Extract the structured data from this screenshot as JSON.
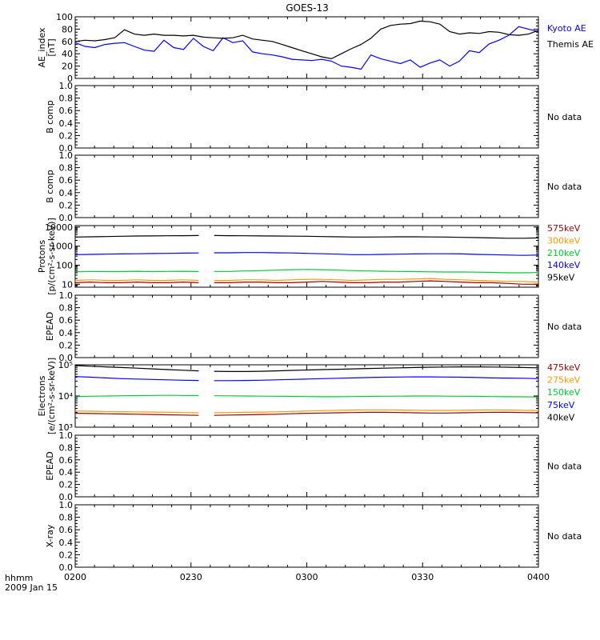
{
  "title": "GOES-13",
  "x_axis": {
    "ticks": [
      "0200",
      "0230",
      "0300",
      "0330",
      "0400"
    ],
    "corner_label_1": "hhmm",
    "corner_label_2": "2009 Jan 15"
  },
  "chart_data": [
    {
      "type": "line",
      "ylabel_lines": [
        "AE_index",
        "[nT]"
      ],
      "ylim": [
        0,
        100
      ],
      "yticks": [
        "0",
        "20",
        "40",
        "60",
        "80",
        "100"
      ],
      "series": [
        {
          "name": "Kyoto AE",
          "color": "#0000ff",
          "values": [
            58,
            52,
            50,
            55,
            57,
            58,
            52,
            46,
            44,
            62,
            50,
            47,
            65,
            52,
            45,
            66,
            58,
            61,
            43,
            40,
            38,
            35,
            31,
            30,
            29,
            31,
            28,
            20,
            18,
            15,
            38,
            32,
            28,
            24,
            30,
            18,
            25,
            30,
            20,
            28,
            45,
            42,
            56,
            62,
            70,
            84,
            80,
            76
          ]
        },
        {
          "name": "Themis AE",
          "color": "#000000",
          "values": [
            60,
            62,
            61,
            63,
            66,
            79,
            72,
            70,
            72,
            70,
            70,
            69,
            70,
            67,
            66,
            65,
            66,
            70,
            64,
            62,
            60,
            55,
            50,
            45,
            40,
            35,
            32,
            40,
            48,
            55,
            65,
            80,
            86,
            88,
            89,
            93,
            92,
            88,
            76,
            72,
            74,
            73,
            76,
            75,
            71,
            70,
            72,
            78
          ]
        }
      ],
      "legend": [
        "Kyoto AE",
        "Themis AE"
      ]
    },
    {
      "type": "line",
      "ylabel_lines": [
        "B comp"
      ],
      "ylim": [
        0,
        1.0
      ],
      "yticks": [
        "0.0",
        "0.2",
        "0.4",
        "0.6",
        "0.8",
        "1.0"
      ],
      "note": "No data",
      "series": []
    },
    {
      "type": "line",
      "ylabel_lines": [
        "B comp"
      ],
      "ylim": [
        0,
        1.0
      ],
      "yticks": [
        "0.0",
        "0.2",
        "0.4",
        "0.6",
        "0.8",
        "1.0"
      ],
      "note": "No data",
      "series": []
    },
    {
      "type": "line",
      "scale": "log",
      "ylabel_lines": [
        "Protons",
        "[p/(cm²-s-sr-keV)]"
      ],
      "ylim": [
        7,
        12000
      ],
      "yticks": [
        {
          "v": 10,
          "t": "10"
        },
        {
          "v": 100,
          "t": "100"
        },
        {
          "v": 1000,
          "t": "1000"
        },
        {
          "v": 10000,
          "t": "10000"
        }
      ],
      "gap": [
        0.27,
        0.28
      ],
      "series": [
        {
          "name": "575keV",
          "color": "#990000",
          "values": [
            12,
            13,
            12,
            12,
            13,
            12,
            12,
            13,
            12,
            12,
            12,
            13,
            13,
            12,
            12,
            13,
            14,
            13,
            12,
            12,
            13,
            13,
            14,
            15,
            14,
            13,
            12,
            12,
            11,
            10,
            10
          ]
        },
        {
          "name": "300keV",
          "color": "#ff9900",
          "values": [
            16,
            17,
            16,
            16,
            17,
            16,
            16,
            17,
            16,
            16,
            16,
            17,
            17,
            16,
            17,
            18,
            18,
            17,
            16,
            17,
            18,
            18,
            19,
            20,
            18,
            17,
            16,
            15,
            14,
            14,
            13
          ]
        },
        {
          "name": "210keV",
          "color": "#00cc33",
          "values": [
            45,
            47,
            46,
            46,
            48,
            46,
            47,
            48,
            46,
            47,
            47,
            50,
            52,
            55,
            58,
            60,
            58,
            55,
            52,
            50,
            48,
            47,
            46,
            45,
            44,
            44,
            43,
            42,
            40,
            40,
            41
          ]
        },
        {
          "name": "140keV",
          "color": "#0000ff",
          "values": [
            360,
            370,
            380,
            390,
            400,
            410,
            420,
            430,
            440,
            450,
            450,
            460,
            460,
            450,
            440,
            420,
            400,
            380,
            360,
            360,
            370,
            380,
            390,
            400,
            400,
            390,
            370,
            360,
            340,
            330,
            340
          ]
        },
        {
          "name": "95keV",
          "color": "#000000",
          "values": [
            3000,
            3100,
            3200,
            3300,
            3400,
            3450,
            3500,
            3550,
            3600,
            3600,
            3550,
            3500,
            3450,
            3400,
            3350,
            3300,
            3200,
            3100,
            3000,
            3000,
            3050,
            3100,
            3100,
            3050,
            3000,
            2900,
            2800,
            2700,
            2600,
            2600,
            2700
          ]
        }
      ],
      "legend": [
        "575keV",
        "300keV",
        "210keV",
        "140keV",
        "95keV"
      ]
    },
    {
      "type": "line",
      "ylabel_lines": [
        "EPEAD"
      ],
      "ylim": [
        0,
        1.0
      ],
      "yticks": [
        "0.0",
        "0.2",
        "0.4",
        "0.6",
        "0.8",
        "1.0"
      ],
      "note": "No data",
      "series": []
    },
    {
      "type": "line",
      "scale": "log",
      "ylabel_lines": [
        "Electrons",
        "[e/(cm²-s-sr-keV)]"
      ],
      "ylim": [
        1000,
        100000
      ],
      "yticks": [
        {
          "v": 1000,
          "t": "10³"
        },
        {
          "v": 10000,
          "t": "10⁴"
        },
        {
          "v": 100000,
          "t": "10⁵"
        }
      ],
      "gap": [
        0.27,
        0.28
      ],
      "series": [
        {
          "name": "475keV",
          "color": "#990000",
          "values": [
            2800,
            2750,
            2700,
            2650,
            2600,
            2550,
            2500,
            2450,
            2400,
            2400,
            2450,
            2500,
            2550,
            2600,
            2700,
            2800,
            2850,
            2900,
            2950,
            3000,
            3000,
            2950,
            2900,
            2850,
            2850,
            2900,
            2950,
            3000,
            3000,
            2950,
            2900
          ]
        },
        {
          "name": "275keV",
          "color": "#ff9900",
          "values": [
            3300,
            3250,
            3200,
            3150,
            3100,
            3050,
            3000,
            2950,
            2900,
            2900,
            2950,
            3000,
            3050,
            3100,
            3200,
            3300,
            3400,
            3500,
            3550,
            3600,
            3600,
            3550,
            3500,
            3450,
            3450,
            3500,
            3550,
            3600,
            3550,
            3500,
            3450
          ]
        },
        {
          "name": "150keV",
          "color": "#00cc33",
          "values": [
            9500,
            9800,
            10000,
            10200,
            10300,
            10400,
            10500,
            10400,
            10300,
            10200,
            10100,
            10000,
            9900,
            9800,
            9700,
            9600,
            9500,
            9500,
            9600,
            9700,
            9800,
            9900,
            10000,
            10000,
            9900,
            9800,
            9700,
            9600,
            9500,
            9400,
            9300
          ]
        },
        {
          "name": "75keV",
          "color": "#0000ff",
          "values": [
            42000,
            40000,
            38000,
            36000,
            35000,
            34000,
            33000,
            32000,
            31500,
            31000,
            31000,
            31500,
            32000,
            33000,
            34000,
            35000,
            36000,
            37000,
            38000,
            39000,
            40000,
            40500,
            41000,
            41000,
            40500,
            40000,
            39000,
            38000,
            37500,
            37000,
            36000
          ]
        },
        {
          "name": "40keV",
          "color": "#000000",
          "values": [
            95000,
            90000,
            86000,
            82000,
            78000,
            74000,
            70000,
            67000,
            64000,
            62000,
            61000,
            61000,
            62000,
            64000,
            66000,
            68000,
            70000,
            72000,
            74000,
            76000,
            78000,
            80000,
            82000,
            84000,
            85000,
            86000,
            86000,
            85000,
            84000,
            82000,
            80000
          ]
        }
      ],
      "legend": [
        "475keV",
        "275keV",
        "150keV",
        "75keV",
        "40keV"
      ]
    },
    {
      "type": "line",
      "ylabel_lines": [
        "EPEAD"
      ],
      "ylim": [
        0,
        1.0
      ],
      "yticks": [
        "0.0",
        "0.2",
        "0.4",
        "0.6",
        "0.8",
        "1.0"
      ],
      "note": "No data",
      "series": []
    },
    {
      "type": "line",
      "ylabel_lines": [
        "X-ray"
      ],
      "ylim": [
        0,
        1.0
      ],
      "yticks": [
        "0.0",
        "0.2",
        "0.4",
        "0.6",
        "0.8",
        "1.0"
      ],
      "note": "No data",
      "series": []
    }
  ]
}
